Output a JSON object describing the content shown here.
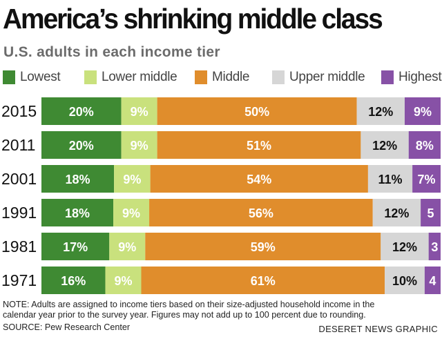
{
  "title": "America’s shrinking middle class",
  "subtitle": "U.S. adults in each income tier",
  "legend": [
    {
      "label": "Lowest",
      "color": "#3f8a33"
    },
    {
      "label": "Lower middle",
      "color": "#c9e17d"
    },
    {
      "label": "Middle",
      "color": "#e08d2c"
    },
    {
      "label": "Upper middle",
      "color": "#d6d6d6"
    },
    {
      "label": "Highest",
      "color": "#8751a6"
    }
  ],
  "chart_data": {
    "type": "bar",
    "orientation": "horizontal",
    "stacked": true,
    "title": "America’s shrinking middle class",
    "subtitle": "U.S. adults in each income tier",
    "categories": [
      "2015",
      "2011",
      "2001",
      "1991",
      "1981",
      "1971"
    ],
    "series": [
      {
        "name": "Lowest",
        "color": "#3f8a33",
        "values": [
          20,
          20,
          18,
          18,
          17,
          16
        ],
        "labels": [
          "20%",
          "20%",
          "18%",
          "18%",
          "17%",
          "16%"
        ],
        "label_color": "#ffffff"
      },
      {
        "name": "Lower middle",
        "color": "#c9e17d",
        "values": [
          9,
          9,
          9,
          9,
          9,
          9
        ],
        "labels": [
          "9%",
          "9%",
          "9%",
          "9%",
          "9%",
          "9%"
        ],
        "label_color": "#ffffff"
      },
      {
        "name": "Middle",
        "color": "#e08d2c",
        "values": [
          50,
          51,
          54,
          56,
          59,
          61
        ],
        "labels": [
          "50%",
          "51%",
          "54%",
          "56%",
          "59%",
          "61%"
        ],
        "label_color": "#ffffff"
      },
      {
        "name": "Upper middle",
        "color": "#d6d6d6",
        "values": [
          12,
          12,
          11,
          12,
          12,
          10
        ],
        "labels": [
          "12%",
          "12%",
          "11%",
          "12%",
          "12%",
          "10%"
        ],
        "label_color": "#111111"
      },
      {
        "name": "Highest",
        "color": "#8751a6",
        "values": [
          9,
          8,
          7,
          5,
          3,
          4
        ],
        "labels": [
          "9%",
          "8%",
          "7%",
          "5",
          "3",
          "4"
        ],
        "label_color": "#ffffff"
      }
    ],
    "xlim": [
      0,
      100
    ],
    "grid": false,
    "legend_position": "top"
  },
  "note": "NOTE: Adults are assigned to income tiers based on their size-adjusted household income in the calendar year prior to the survey year. Figures may not add up to 100 percent due to rounding.",
  "source": "SOURCE: Pew Research Center",
  "credit": "DESERET NEWS GRAPHIC"
}
